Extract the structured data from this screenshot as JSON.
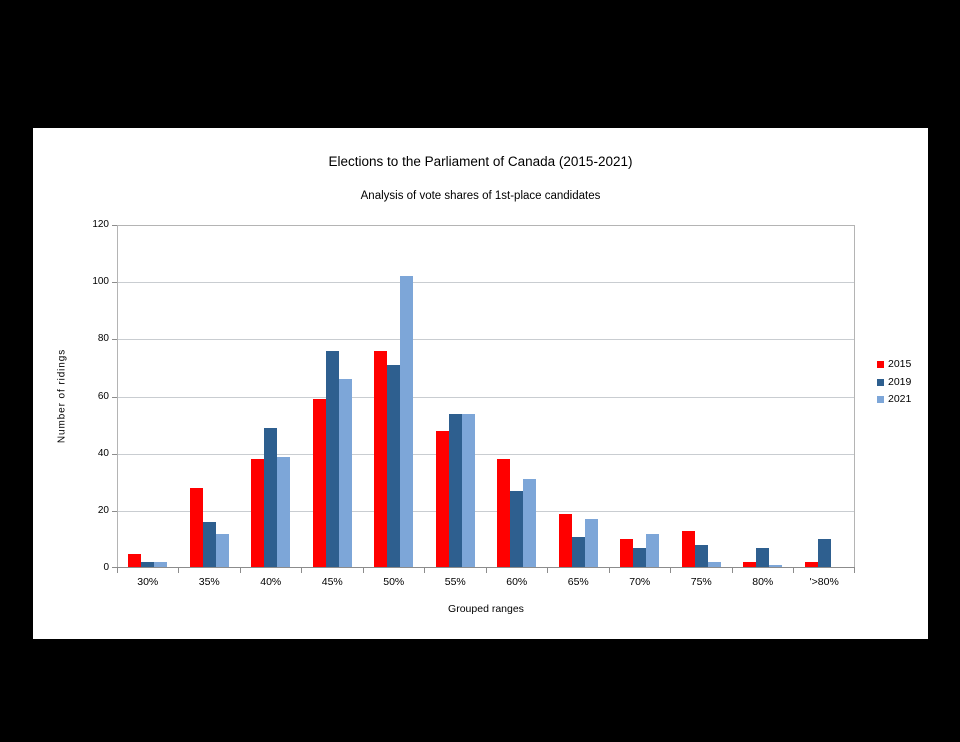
{
  "window": {
    "background_color": "#000000",
    "panel_background_color": "#ffffff"
  },
  "chart_data": {
    "type": "bar",
    "title": "Elections to the Parliament of Canada (2015-2021)",
    "subtitle": "Analysis of vote shares of 1st-place candidates",
    "xlabel": "Grouped ranges",
    "ylabel": "Number of ridings",
    "categories": [
      "30%",
      "35%",
      "40%",
      "45%",
      "50%",
      "55%",
      "60%",
      "65%",
      "70%",
      "75%",
      "80%",
      "'>80%"
    ],
    "series": [
      {
        "name": "2015",
        "color": "#ff0000",
        "values": [
          5,
          28,
          38,
          59,
          76,
          48,
          38,
          19,
          10,
          13,
          2,
          2
        ]
      },
      {
        "name": "2019",
        "color": "#2e5f8f",
        "values": [
          2,
          16,
          49,
          76,
          71,
          54,
          27,
          11,
          7,
          8,
          7,
          10
        ]
      },
      {
        "name": "2021",
        "color": "#7da6d8",
        "values": [
          2,
          12,
          39,
          66,
          102,
          54,
          31,
          17,
          12,
          2,
          1,
          0
        ]
      }
    ],
    "ylim": [
      0,
      120
    ],
    "yticks": [
      0,
      20,
      40,
      60,
      80,
      100,
      120
    ],
    "grid": true,
    "legend_position": "right",
    "grid_color": "#c9cdd1",
    "axis_color": "#8c8c8c",
    "border_color": "#b4b4b4"
  }
}
